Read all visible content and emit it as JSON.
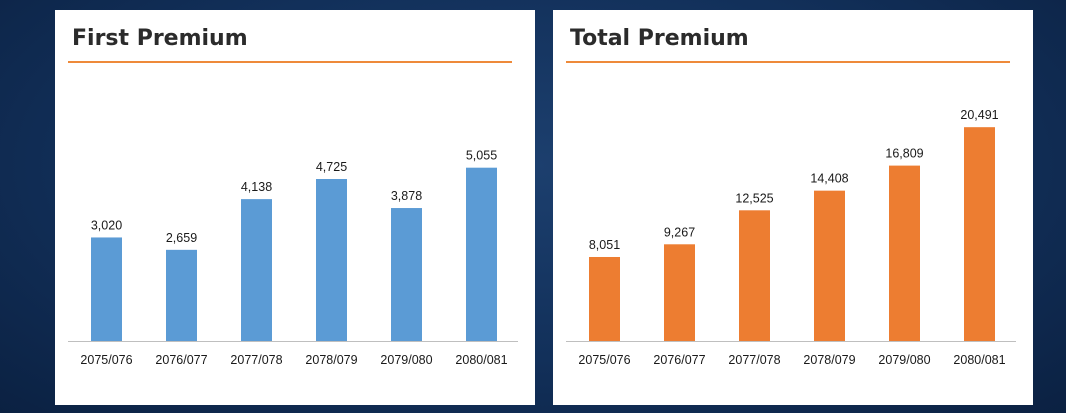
{
  "chart_data": [
    {
      "type": "bar",
      "title": "First Premium",
      "categories": [
        "2075/076",
        "2076/077",
        "2077/078",
        "2078/079",
        "2079/080",
        "2080/081"
      ],
      "values": [
        3020,
        2659,
        4138,
        4725,
        3878,
        5055
      ],
      "value_labels": [
        "3,020",
        "2,659",
        "4,138",
        "4,725",
        "3,878",
        "5,055"
      ],
      "color": "#5b9bd5",
      "ylim": [
        0,
        7000
      ],
      "grid": false
    },
    {
      "type": "bar",
      "title": "Total Premium",
      "categories": [
        "2075/076",
        "2076/077",
        "2077/078",
        "2078/079",
        "2079/080",
        "2080/081"
      ],
      "values": [
        8051,
        9267,
        12525,
        14408,
        16809,
        20491
      ],
      "value_labels": [
        "8,051",
        "9,267",
        "12,525",
        "14,408",
        "16,809",
        "20,491"
      ],
      "color": "#ed7d31",
      "ylim": [
        0,
        23000
      ],
      "grid": false
    }
  ],
  "title_rule_color": "#ee8a3a"
}
